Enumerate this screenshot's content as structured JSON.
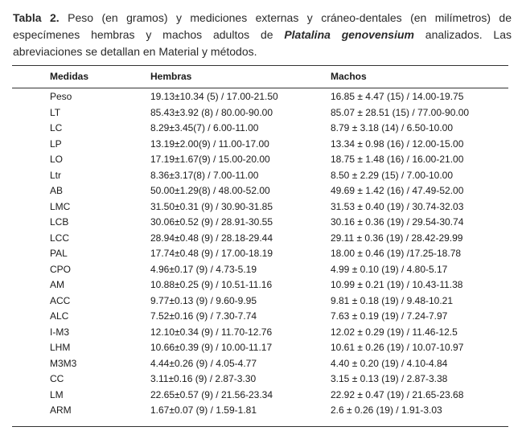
{
  "caption": {
    "label": "Tabla 2.",
    "text_before": "Peso (en gramos) y mediciones externas y cráneo-dentales (en milímetros) de especímenes hembras y machos adultos de",
    "species": "Platalina genovensium",
    "text_after": "analizados. Las abreviaciones se detallan en Material y métodos."
  },
  "table": {
    "headers": [
      "Medidas",
      "Hembras",
      "Machos"
    ],
    "rows": [
      [
        "Peso",
        "19.13±10.34 (5)  / 17.00-21.50",
        "16.85 ± 4.47 (15) / 14.00-19.75"
      ],
      [
        "LT",
        "85.43±3.92 (8) / 80.00-90.00",
        "85.07 ± 28.51 (15) / 77.00-90.00"
      ],
      [
        "LC",
        "8.29±3.45(7) / 6.00-11.00",
        "8.79 ± 3.18 (14) / 6.50-10.00"
      ],
      [
        "LP",
        "13.19±2.00(9) / 11.00-17.00",
        "13.34 ± 0.98 (16) / 12.00-15.00"
      ],
      [
        "LO",
        "17.19±1.67(9) / 15.00-20.00",
        "18.75 ± 1.48 (16) / 16.00-21.00"
      ],
      [
        "Ltr",
        "8.36±3.17(8) / 7.00-11.00",
        "8.50 ± 2.29 (15) / 7.00-10.00"
      ],
      [
        "AB",
        "50.00±1.29(8) / 48.00-52.00",
        "49.69 ± 1.42 (16) / 47.49-52.00"
      ],
      [
        "LMC",
        "31.50±0.31 (9) / 30.90-31.85",
        "31.53 ± 0.40 (19) / 30.74-32.03"
      ],
      [
        "LCB",
        "30.06±0.52 (9) / 28.91-30.55",
        "30.16 ± 0.36 (19) / 29.54-30.74"
      ],
      [
        "LCC",
        "28.94±0.48 (9) / 28.18-29.44",
        "29.11 ± 0.36 (19) / 28.42-29.99"
      ],
      [
        "PAL",
        "17.74±0.48 (9) / 17.00-18.19",
        "18.00 ± 0.46 (19) /17.25-18.78"
      ],
      [
        "CPO",
        "4.96±0.17 (9) / 4.73-5.19",
        "4.99 ± 0.10 (19) / 4.80-5.17"
      ],
      [
        "AM",
        "10.88±0.25 (9) / 10.51-11.16",
        "10.99 ± 0.21 (19) / 10.43-11.38"
      ],
      [
        "ACC",
        "9.77±0.13 (9) / 9.60-9.95",
        "9.81 ± 0.18 (19) / 9.48-10.21"
      ],
      [
        "ALC",
        "7.52±0.16 (9) / 7.30-7.74",
        "7.63 ± 0.19 (19) / 7.24-7.97"
      ],
      [
        "I-M3",
        "12.10±0.34 (9) / 11.70-12.76",
        "12.02 ± 0.29 (19) / 11.46-12.5"
      ],
      [
        "LHM",
        "10.66±0.39 (9) / 10.00-11.17",
        "10.61 ± 0.26 (19) / 10.07-10.97"
      ],
      [
        "M3M3",
        "4.44±0.26 (9) / 4.05-4.77",
        "4.40 ± 0.20 (19) / 4.10-4.84"
      ],
      [
        "CC",
        "3.11±0.16 (9) / 2.87-3.30",
        "3.15 ± 0.13 (19) / 2.87-3.38"
      ],
      [
        "LM",
        "22.65±0.57 (9) / 21.56-23.34",
        "22.92 ± 0.47 (19) / 21.65-23.68"
      ],
      [
        "ARM",
        "1.67±0.07 (9) / 1.59-1.81",
        "2.6 ± 0.26 (19) / 1.91-3.03"
      ]
    ]
  }
}
